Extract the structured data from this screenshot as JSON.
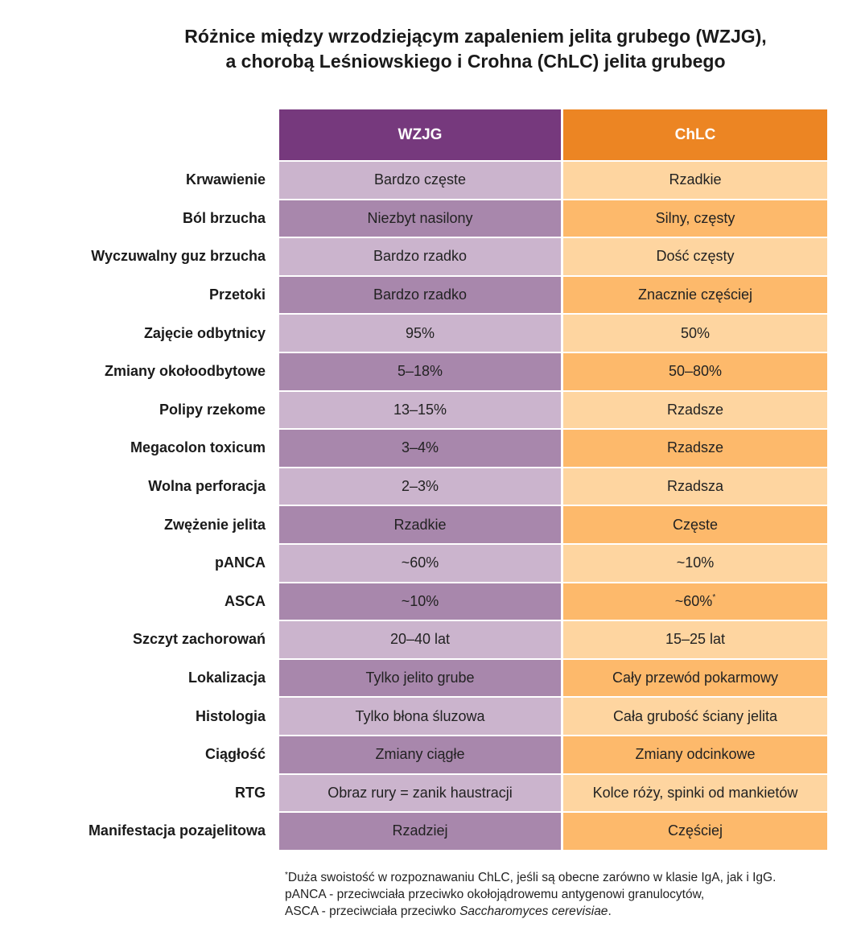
{
  "title": {
    "line1": "Różnice między wrzodziejącym zapaleniem jelita grubego (WZJG),",
    "line2": "a chorobą Leśniowskiego i Crohna (ChLC) jelita grubego"
  },
  "columns": [
    "WZJG",
    "ChLC"
  ],
  "colors": {
    "wzjg_header": "#76397d",
    "chlc_header": "#ec8523",
    "wzjg_light": "#cbb4cd",
    "wzjg_dark": "#a887ac",
    "chlc_light": "#fed5a0",
    "chlc_dark": "#fdb96b"
  },
  "rows": [
    {
      "label": "Krwawienie",
      "wzjg": "Bardzo częste",
      "chlc": "Rzadkie"
    },
    {
      "label": "Ból brzucha",
      "wzjg": "Niezbyt nasilony",
      "chlc": "Silny, częsty"
    },
    {
      "label": "Wyczuwalny guz brzucha",
      "wzjg": "Bardzo rzadko",
      "chlc": "Dość częsty"
    },
    {
      "label": "Przetoki",
      "wzjg": "Bardzo rzadko",
      "chlc": "Znacznie częściej"
    },
    {
      "label": "Zajęcie odbytnicy",
      "wzjg": "95%",
      "chlc": "50%"
    },
    {
      "label": "Zmiany okołoodbytowe",
      "wzjg": "5–18%",
      "chlc": "50–80%"
    },
    {
      "label": "Polipy rzekome",
      "wzjg": "13–15%",
      "chlc": "Rzadsze"
    },
    {
      "label": "Megacolon toxicum",
      "wzjg": "3–4%",
      "chlc": "Rzadsze"
    },
    {
      "label": "Wolna perforacja",
      "wzjg": "2–3%",
      "chlc": "Rzadsza"
    },
    {
      "label": "Zwężenie jelita",
      "wzjg": "Rzadkie",
      "chlc": "Częste"
    },
    {
      "label": "pANCA",
      "wzjg": "~60%",
      "chlc": "~10%"
    },
    {
      "label": "ASCA",
      "wzjg": "~10%",
      "chlc": "~60%",
      "chlc_sup": "*"
    },
    {
      "label": "Szczyt zachorowań",
      "wzjg": "20–40 lat",
      "chlc": "15–25 lat"
    },
    {
      "label": "Lokalizacja",
      "wzjg": "Tylko jelito grube",
      "chlc": "Cały przewód pokarmowy"
    },
    {
      "label": "Histologia",
      "wzjg": "Tylko błona śluzowa",
      "chlc": "Cała grubość ściany jelita"
    },
    {
      "label": "Ciągłość",
      "wzjg": "Zmiany ciągłe",
      "chlc": "Zmiany odcinkowe"
    },
    {
      "label": "RTG",
      "wzjg": "Obraz rury = zanik haustracji",
      "chlc": "Kolce róży, spinki od mankietów"
    },
    {
      "label": "Manifestacja pozajelitowa",
      "wzjg": "Rzadziej",
      "chlc": "Częściej"
    }
  ],
  "footnote": {
    "star": "*",
    "line1": "Duża swoistość w rozpoznawaniu ChLC, jeśli są obecne zarówno w klasie IgA, jak i IgG.",
    "line2": "pANCA - przeciwciała przeciwko okołojądrowemu antygenowi granulocytów,",
    "line3_prefix": "ASCA - przeciwciała przeciwko ",
    "line3_italic": "Saccharomyces cerevisiae",
    "line3_suffix": "."
  }
}
